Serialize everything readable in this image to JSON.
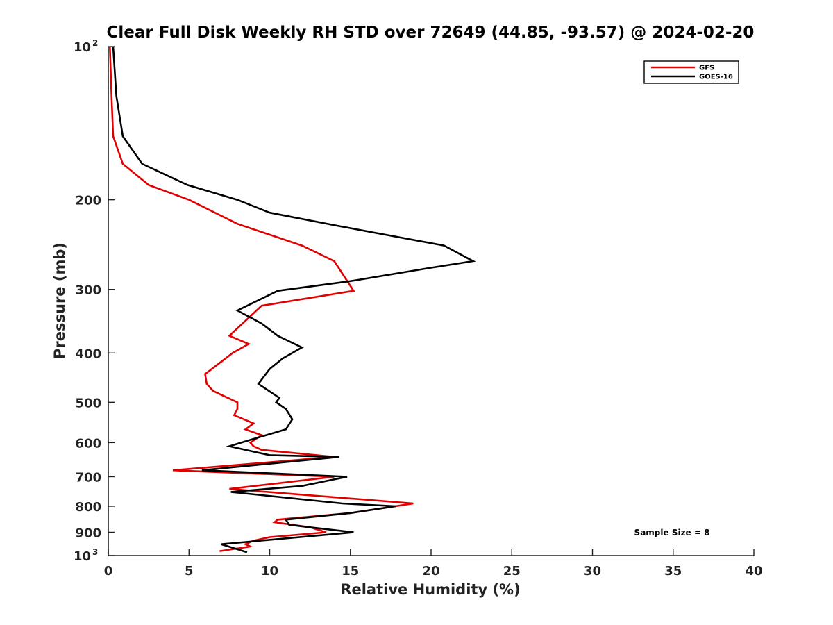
{
  "chart_data": {
    "type": "line",
    "title": "Clear Full Disk Weekly RH STD over 72649 (44.85, -93.57) @ 2024-02-20",
    "xlabel": "Relative Humidity (%)",
    "ylabel": "Pressure (mb)",
    "xlim": [
      0,
      40
    ],
    "ylim": [
      100,
      1000
    ],
    "y_scale": "log",
    "y_reversed": true,
    "x_ticks": [
      "0",
      "5",
      "10",
      "15",
      "20",
      "25",
      "30",
      "35",
      "40"
    ],
    "x_tick_values": [
      0,
      5,
      10,
      15,
      20,
      25,
      30,
      35,
      40
    ],
    "y_ticks": [
      {
        "value": 100,
        "base": "10",
        "exp": "2"
      },
      {
        "value": 200,
        "label": "200"
      },
      {
        "value": 300,
        "label": "300"
      },
      {
        "value": 400,
        "label": "400"
      },
      {
        "value": 500,
        "label": "500"
      },
      {
        "value": 600,
        "label": "600"
      },
      {
        "value": 700,
        "label": "700"
      },
      {
        "value": 800,
        "label": "800"
      },
      {
        "value": 900,
        "label": "900"
      },
      {
        "value": 1000,
        "base": "10",
        "exp": "3"
      }
    ],
    "legend_position": "top-right",
    "annotation": "Sample Size = 8",
    "series": [
      {
        "name": "GFS",
        "color": "#e00000",
        "points": [
          [
            0.1,
            100
          ],
          [
            0.2,
            125
          ],
          [
            0.3,
            150
          ],
          [
            0.9,
            170
          ],
          [
            2.5,
            187
          ],
          [
            5.0,
            200
          ],
          [
            8.0,
            223
          ],
          [
            12.0,
            246
          ],
          [
            14.0,
            264
          ],
          [
            15.2,
            302
          ],
          [
            9.5,
            323
          ],
          [
            7.5,
            370
          ],
          [
            8.7,
            384
          ],
          [
            7.7,
            400
          ],
          [
            6.0,
            440
          ],
          [
            6.1,
            460
          ],
          [
            6.5,
            475
          ],
          [
            8.0,
            500
          ],
          [
            8.0,
            515
          ],
          [
            7.8,
            530
          ],
          [
            9.0,
            550
          ],
          [
            8.5,
            565
          ],
          [
            9.5,
            580
          ],
          [
            8.8,
            600
          ],
          [
            9.0,
            610
          ],
          [
            9.5,
            620
          ],
          [
            14.0,
            640
          ],
          [
            4.0,
            680
          ],
          [
            14.0,
            700
          ],
          [
            7.5,
            740
          ],
          [
            18.9,
            790
          ],
          [
            15.0,
            825
          ],
          [
            10.5,
            850
          ],
          [
            10.3,
            860
          ],
          [
            12.5,
            880
          ],
          [
            13.5,
            900
          ],
          [
            10.0,
            920
          ],
          [
            9.0,
            935
          ],
          [
            8.5,
            950
          ],
          [
            8.8,
            960
          ],
          [
            6.9,
            980
          ]
        ]
      },
      {
        "name": "GOES-16",
        "color": "#000000",
        "points": [
          [
            0.3,
            100
          ],
          [
            0.5,
            125
          ],
          [
            0.9,
            150
          ],
          [
            2.1,
            170
          ],
          [
            4.9,
            187
          ],
          [
            8.0,
            200
          ],
          [
            10.0,
            212
          ],
          [
            14.2,
            225
          ],
          [
            20.8,
            246
          ],
          [
            22.6,
            264
          ],
          [
            20.0,
            272
          ],
          [
            15.0,
            289
          ],
          [
            10.5,
            302
          ],
          [
            8.0,
            330
          ],
          [
            9.5,
            350
          ],
          [
            10.5,
            370
          ],
          [
            12.0,
            390
          ],
          [
            10.8,
            410
          ],
          [
            10.0,
            430
          ],
          [
            9.3,
            460
          ],
          [
            10.6,
            490
          ],
          [
            10.4,
            500
          ],
          [
            11.0,
            515
          ],
          [
            11.4,
            540
          ],
          [
            11.0,
            565
          ],
          [
            9.0,
            590
          ],
          [
            7.5,
            610
          ],
          [
            9.0,
            625
          ],
          [
            10.0,
            635
          ],
          [
            14.3,
            640
          ],
          [
            5.8,
            680
          ],
          [
            14.8,
            700
          ],
          [
            12.0,
            730
          ],
          [
            7.6,
            750
          ],
          [
            14.5,
            790
          ],
          [
            17.8,
            800
          ],
          [
            15.0,
            825
          ],
          [
            11.0,
            850
          ],
          [
            11.2,
            870
          ],
          [
            12.5,
            880
          ],
          [
            15.2,
            900
          ],
          [
            7.0,
            950
          ],
          [
            8.6,
            985
          ]
        ]
      }
    ]
  }
}
